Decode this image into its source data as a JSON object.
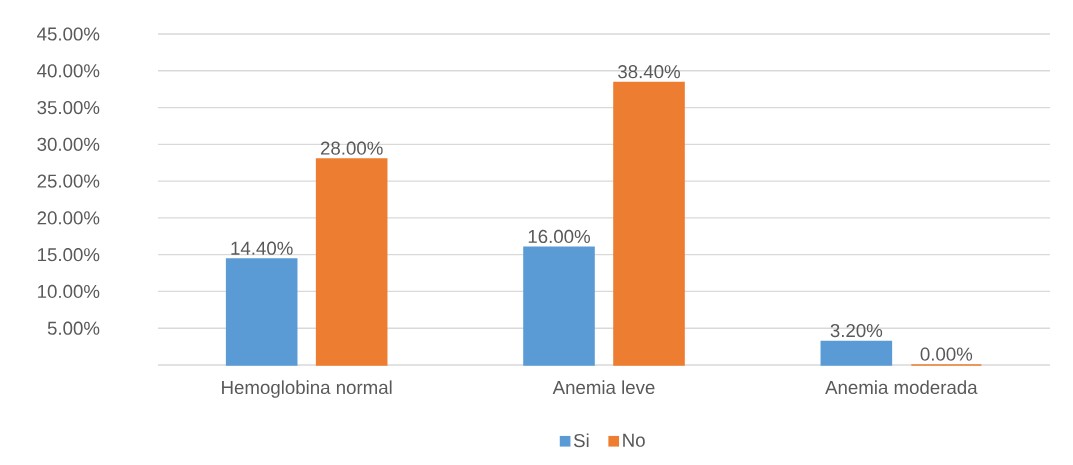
{
  "chart_data": {
    "type": "bar",
    "categories": [
      "Hemoglobina normal",
      "Anemia leve",
      "Anemia moderada"
    ],
    "series": [
      {
        "name": "Si",
        "color": "#5b9bd5",
        "values": [
          14.4,
          16,
          3.2
        ],
        "value_labels": [
          "14.40%",
          "16.00%",
          "3.20%"
        ]
      },
      {
        "name": "No",
        "color": "#ed7d31",
        "values": [
          28,
          38.4,
          0
        ],
        "value_labels": [
          "28.00%",
          "38.40%",
          "0.00%"
        ]
      }
    ],
    "ylim": [
      0,
      45
    ],
    "yticks": [
      {
        "value": 5,
        "label": "5.00%"
      },
      {
        "value": 10,
        "label": "10.00%"
      },
      {
        "value": 15,
        "label": "15.00%"
      },
      {
        "value": 20,
        "label": "20.00%"
      },
      {
        "value": 25,
        "label": "25.00%"
      },
      {
        "value": 30,
        "label": "30.00%"
      },
      {
        "value": 35,
        "label": "35.00%"
      },
      {
        "value": 40,
        "label": "40.00%"
      },
      {
        "value": 45,
        "label": "45.00%"
      }
    ],
    "grid": "y",
    "legend": "bottom"
  }
}
